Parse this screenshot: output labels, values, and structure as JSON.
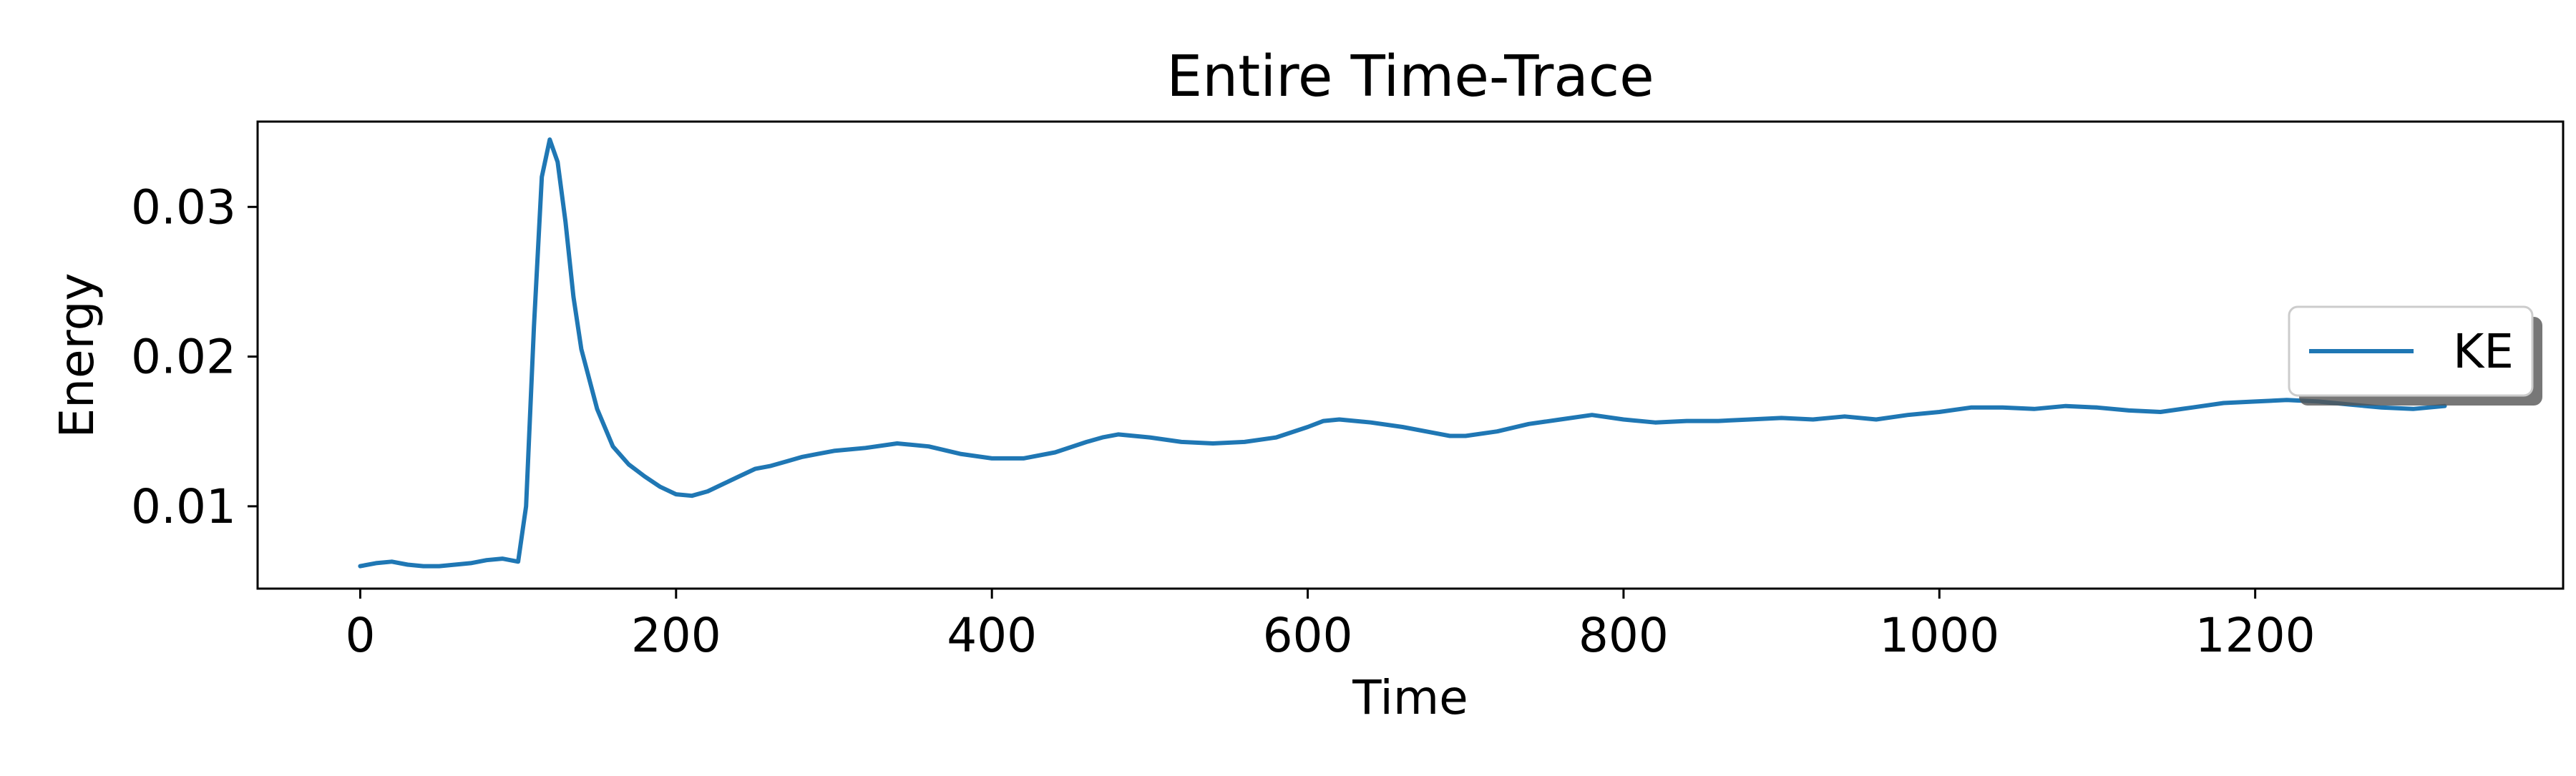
{
  "chart_data": {
    "type": "line",
    "title": "Entire Time-Trace",
    "xlabel": "Time",
    "ylabel": "Energy",
    "xlim": [
      -65,
      1395
    ],
    "ylim": [
      0.0045,
      0.0357
    ],
    "xticks": [
      0,
      200,
      400,
      600,
      800,
      1000,
      1200
    ],
    "xtick_labels": [
      "0",
      "200",
      "400",
      "600",
      "800",
      "1000",
      "1200"
    ],
    "yticks": [
      0.01,
      0.02,
      0.03
    ],
    "ytick_labels": [
      "0.01",
      "0.02",
      "0.03"
    ],
    "grid": false,
    "legend_position": "center-right",
    "colors": {
      "KE": "#1f77b4"
    },
    "series": [
      {
        "name": "KE",
        "x": [
          0,
          10,
          20,
          30,
          40,
          50,
          60,
          70,
          80,
          90,
          100,
          105,
          110,
          115,
          120,
          125,
          130,
          135,
          140,
          150,
          160,
          170,
          180,
          190,
          200,
          210,
          220,
          230,
          240,
          250,
          260,
          270,
          280,
          290,
          300,
          320,
          340,
          360,
          380,
          400,
          420,
          440,
          460,
          470,
          480,
          500,
          520,
          540,
          560,
          580,
          600,
          610,
          620,
          640,
          660,
          680,
          690,
          700,
          720,
          740,
          760,
          780,
          800,
          820,
          840,
          860,
          880,
          900,
          920,
          940,
          960,
          980,
          1000,
          1020,
          1040,
          1060,
          1080,
          1100,
          1120,
          1140,
          1160,
          1180,
          1200,
          1220,
          1240,
          1260,
          1280,
          1300,
          1320
        ],
        "y": [
          0.006,
          0.0062,
          0.0063,
          0.0061,
          0.006,
          0.006,
          0.0061,
          0.0062,
          0.0064,
          0.0065,
          0.0063,
          0.01,
          0.022,
          0.032,
          0.0345,
          0.033,
          0.029,
          0.024,
          0.0205,
          0.0165,
          0.014,
          0.0128,
          0.012,
          0.0113,
          0.0108,
          0.0107,
          0.011,
          0.0115,
          0.012,
          0.0125,
          0.0127,
          0.013,
          0.0133,
          0.0135,
          0.0137,
          0.0139,
          0.0142,
          0.014,
          0.0135,
          0.0132,
          0.0132,
          0.0136,
          0.0143,
          0.0146,
          0.0148,
          0.0146,
          0.0143,
          0.0142,
          0.0143,
          0.0146,
          0.0153,
          0.0157,
          0.0158,
          0.0156,
          0.0153,
          0.0149,
          0.0147,
          0.0147,
          0.015,
          0.0155,
          0.0158,
          0.0161,
          0.0158,
          0.0156,
          0.0157,
          0.0157,
          0.0158,
          0.0159,
          0.0158,
          0.016,
          0.0158,
          0.0161,
          0.0163,
          0.0166,
          0.0166,
          0.0165,
          0.0167,
          0.0166,
          0.0164,
          0.0163,
          0.0166,
          0.0169,
          0.017,
          0.0171,
          0.017,
          0.0168,
          0.0166,
          0.0165,
          0.0167
        ]
      }
    ]
  }
}
